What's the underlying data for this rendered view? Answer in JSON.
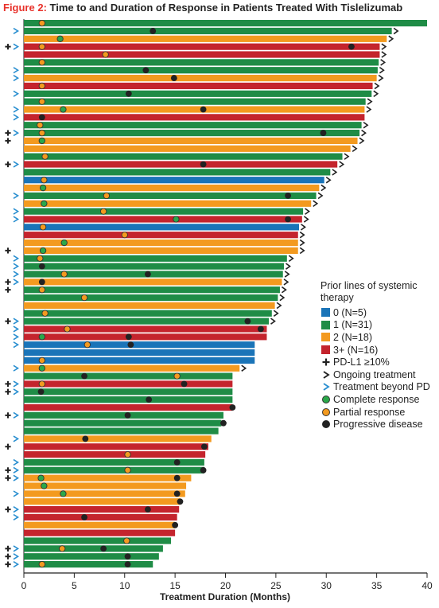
{
  "figure_label": "Figure 2:",
  "figure_title": "Time to and Duration of Response in Patients Treated With Tislelizumab",
  "legend": {
    "header": "Prior lines of systemic therapy",
    "lines": [
      {
        "key": "0",
        "label": "0 (N=5)",
        "color": "#1a74b8"
      },
      {
        "key": "1",
        "label": "1 (N=31)",
        "color": "#1f8c46"
      },
      {
        "key": "2",
        "label": "2 (N=18)",
        "color": "#f39a1f"
      },
      {
        "key": "3",
        "label": "3+ (N=16)",
        "color": "#c4242d"
      }
    ],
    "pdl1": "PD-L1 ≥10%",
    "ongoing": "Ongoing treatment",
    "beyond": "Treatment beyond PD",
    "complete": "Complete response",
    "partial": "Partial response",
    "progressive": "Progressive disease",
    "complete_color": "#2aa84a",
    "partial_color": "#f39a1f",
    "progressive_color": "#222222",
    "beyond_color": "#2a8fd0"
  },
  "chart_data": {
    "type": "bar",
    "orientation": "horizontal",
    "title": "Time to and Duration of Response in Patients Treated With Tislelizumab",
    "xlabel": "Treatment Duration (Months)",
    "xlim": [
      0,
      40
    ],
    "xticks": [
      0,
      5,
      10,
      15,
      20,
      25,
      30,
      35,
      40
    ],
    "legend_position": "right",
    "rows": [
      {
        "duration": 40.0,
        "line": "1",
        "pdl1": false,
        "beyond": false,
        "ongoing": false,
        "response": [
          {
            "type": "partial",
            "x": 1.8
          }
        ]
      },
      {
        "duration": 36.5,
        "line": "1",
        "pdl1": false,
        "beyond": true,
        "ongoing": true,
        "response": [
          {
            "type": "progressive",
            "x": 12.8
          }
        ]
      },
      {
        "duration": 36.0,
        "line": "2",
        "pdl1": false,
        "beyond": false,
        "ongoing": true,
        "response": [
          {
            "type": "complete",
            "x": 3.6
          }
        ]
      },
      {
        "duration": 35.3,
        "line": "3",
        "pdl1": true,
        "beyond": true,
        "ongoing": true,
        "response": [
          {
            "type": "partial",
            "x": 1.8
          },
          {
            "type": "progressive",
            "x": 32.5
          }
        ]
      },
      {
        "duration": 35.3,
        "line": "3",
        "pdl1": false,
        "beyond": false,
        "ongoing": true,
        "response": [
          {
            "type": "partial",
            "x": 8.1
          }
        ]
      },
      {
        "duration": 35.2,
        "line": "1",
        "pdl1": false,
        "beyond": false,
        "ongoing": true,
        "response": [
          {
            "type": "partial",
            "x": 1.8
          }
        ]
      },
      {
        "duration": 35.1,
        "line": "1",
        "pdl1": false,
        "beyond": true,
        "ongoing": true,
        "response": [
          {
            "type": "progressive",
            "x": 12.1
          }
        ]
      },
      {
        "duration": 35.0,
        "line": "2",
        "pdl1": false,
        "beyond": true,
        "ongoing": true,
        "response": [
          {
            "type": "progressive",
            "x": 14.9
          }
        ]
      },
      {
        "duration": 34.6,
        "line": "3",
        "pdl1": false,
        "beyond": false,
        "ongoing": true,
        "response": [
          {
            "type": "partial",
            "x": 1.8
          }
        ]
      },
      {
        "duration": 34.5,
        "line": "1",
        "pdl1": false,
        "beyond": true,
        "ongoing": true,
        "response": [
          {
            "type": "progressive",
            "x": 10.4
          }
        ]
      },
      {
        "duration": 33.9,
        "line": "1",
        "pdl1": false,
        "beyond": false,
        "ongoing": true,
        "response": [
          {
            "type": "partial",
            "x": 1.8
          }
        ]
      },
      {
        "duration": 33.8,
        "line": "2",
        "pdl1": false,
        "beyond": true,
        "ongoing": true,
        "response": [
          {
            "type": "complete",
            "x": 3.9
          },
          {
            "type": "progressive",
            "x": 17.8
          }
        ]
      },
      {
        "duration": 33.8,
        "line": "3",
        "pdl1": false,
        "beyond": true,
        "ongoing": false,
        "response": [
          {
            "type": "progressive",
            "x": 1.8
          }
        ]
      },
      {
        "duration": 33.5,
        "line": "1",
        "pdl1": false,
        "beyond": false,
        "ongoing": true,
        "response": [
          {
            "type": "partial",
            "x": 1.6
          }
        ]
      },
      {
        "duration": 33.3,
        "line": "1",
        "pdl1": true,
        "beyond": true,
        "ongoing": true,
        "response": [
          {
            "type": "partial",
            "x": 1.8
          },
          {
            "type": "progressive",
            "x": 29.7
          }
        ]
      },
      {
        "duration": 33.1,
        "line": "2",
        "pdl1": true,
        "beyond": false,
        "ongoing": true,
        "response": [
          {
            "type": "complete",
            "x": 1.8
          }
        ]
      },
      {
        "duration": 32.4,
        "line": "2",
        "pdl1": false,
        "beyond": false,
        "ongoing": true,
        "response": []
      },
      {
        "duration": 31.6,
        "line": "1",
        "pdl1": false,
        "beyond": false,
        "ongoing": true,
        "response": [
          {
            "type": "partial",
            "x": 2.1
          }
        ]
      },
      {
        "duration": 31.1,
        "line": "3",
        "pdl1": true,
        "beyond": true,
        "ongoing": true,
        "response": [
          {
            "type": "progressive",
            "x": 17.8
          }
        ]
      },
      {
        "duration": 30.4,
        "line": "1",
        "pdl1": false,
        "beyond": false,
        "ongoing": true,
        "response": []
      },
      {
        "duration": 29.8,
        "line": "0",
        "pdl1": false,
        "beyond": false,
        "ongoing": true,
        "response": [
          {
            "type": "partial",
            "x": 2.0
          }
        ]
      },
      {
        "duration": 29.3,
        "line": "2",
        "pdl1": false,
        "beyond": false,
        "ongoing": true,
        "response": [
          {
            "type": "complete",
            "x": 1.9
          }
        ]
      },
      {
        "duration": 29.0,
        "line": "1",
        "pdl1": false,
        "beyond": true,
        "ongoing": true,
        "response": [
          {
            "type": "partial",
            "x": 8.2
          },
          {
            "type": "progressive",
            "x": 26.2
          }
        ]
      },
      {
        "duration": 28.5,
        "line": "2",
        "pdl1": false,
        "beyond": false,
        "ongoing": true,
        "response": [
          {
            "type": "complete",
            "x": 2.0
          }
        ]
      },
      {
        "duration": 27.7,
        "line": "1",
        "pdl1": false,
        "beyond": true,
        "ongoing": true,
        "response": [
          {
            "type": "partial",
            "x": 7.9
          }
        ]
      },
      {
        "duration": 27.6,
        "line": "3",
        "pdl1": false,
        "beyond": true,
        "ongoing": true,
        "response": [
          {
            "type": "complete",
            "x": 15.1
          },
          {
            "type": "progressive",
            "x": 26.2
          }
        ]
      },
      {
        "duration": 27.3,
        "line": "0",
        "pdl1": false,
        "beyond": false,
        "ongoing": true,
        "response": [
          {
            "type": "partial",
            "x": 1.9
          }
        ]
      },
      {
        "duration": 27.2,
        "line": "3",
        "pdl1": false,
        "beyond": false,
        "ongoing": true,
        "response": [
          {
            "type": "partial",
            "x": 10.0
          }
        ]
      },
      {
        "duration": 27.2,
        "line": "2",
        "pdl1": false,
        "beyond": false,
        "ongoing": true,
        "response": [
          {
            "type": "complete",
            "x": 4.0
          }
        ]
      },
      {
        "duration": 27.2,
        "line": "2",
        "pdl1": true,
        "beyond": false,
        "ongoing": true,
        "response": [
          {
            "type": "complete",
            "x": 1.9
          }
        ]
      },
      {
        "duration": 26.1,
        "line": "1",
        "pdl1": false,
        "beyond": true,
        "ongoing": true,
        "response": [
          {
            "type": "partial",
            "x": 1.6
          }
        ]
      },
      {
        "duration": 25.8,
        "line": "1",
        "pdl1": false,
        "beyond": true,
        "ongoing": true,
        "response": [
          {
            "type": "progressive",
            "x": 1.8
          }
        ]
      },
      {
        "duration": 25.7,
        "line": "1",
        "pdl1": false,
        "beyond": true,
        "ongoing": true,
        "response": [
          {
            "type": "partial",
            "x": 4.0
          },
          {
            "type": "progressive",
            "x": 12.3
          }
        ]
      },
      {
        "duration": 25.6,
        "line": "2",
        "pdl1": true,
        "beyond": true,
        "ongoing": true,
        "response": [
          {
            "type": "progressive",
            "x": 1.8
          }
        ]
      },
      {
        "duration": 25.4,
        "line": "1",
        "pdl1": true,
        "beyond": false,
        "ongoing": true,
        "response": [
          {
            "type": "partial",
            "x": 1.8
          }
        ]
      },
      {
        "duration": 25.2,
        "line": "1",
        "pdl1": false,
        "beyond": false,
        "ongoing": true,
        "response": [
          {
            "type": "partial",
            "x": 6.0
          }
        ]
      },
      {
        "duration": 24.9,
        "line": "2",
        "pdl1": false,
        "beyond": false,
        "ongoing": true,
        "response": []
      },
      {
        "duration": 24.6,
        "line": "1",
        "pdl1": false,
        "beyond": false,
        "ongoing": true,
        "response": [
          {
            "type": "partial",
            "x": 2.1
          }
        ]
      },
      {
        "duration": 24.3,
        "line": "1",
        "pdl1": true,
        "beyond": true,
        "ongoing": true,
        "response": [
          {
            "type": "progressive",
            "x": 22.2
          }
        ]
      },
      {
        "duration": 24.1,
        "line": "3",
        "pdl1": false,
        "beyond": true,
        "ongoing": false,
        "response": [
          {
            "type": "partial",
            "x": 4.3
          },
          {
            "type": "progressive",
            "x": 23.5
          }
        ]
      },
      {
        "duration": 24.1,
        "line": "3",
        "pdl1": false,
        "beyond": true,
        "ongoing": false,
        "response": [
          {
            "type": "complete",
            "x": 1.8
          },
          {
            "type": "progressive",
            "x": 10.4
          }
        ]
      },
      {
        "duration": 22.9,
        "line": "0",
        "pdl1": false,
        "beyond": true,
        "ongoing": false,
        "response": [
          {
            "type": "partial",
            "x": 6.3
          },
          {
            "type": "progressive",
            "x": 10.6
          }
        ]
      },
      {
        "duration": 22.9,
        "line": "0",
        "pdl1": false,
        "beyond": false,
        "ongoing": false,
        "response": []
      },
      {
        "duration": 22.9,
        "line": "0",
        "pdl1": false,
        "beyond": false,
        "ongoing": false,
        "response": [
          {
            "type": "partial",
            "x": 1.8
          }
        ]
      },
      {
        "duration": 21.4,
        "line": "2",
        "pdl1": false,
        "beyond": true,
        "ongoing": true,
        "response": [
          {
            "type": "complete",
            "x": 1.8
          }
        ]
      },
      {
        "duration": 20.7,
        "line": "1",
        "pdl1": false,
        "beyond": false,
        "ongoing": false,
        "response": [
          {
            "type": "progressive",
            "x": 6.0
          },
          {
            "type": "partial",
            "x": 15.2
          }
        ]
      },
      {
        "duration": 20.7,
        "line": "3",
        "pdl1": true,
        "beyond": true,
        "ongoing": false,
        "response": [
          {
            "type": "partial",
            "x": 1.8
          },
          {
            "type": "progressive",
            "x": 15.9
          }
        ]
      },
      {
        "duration": 20.7,
        "line": "1",
        "pdl1": true,
        "beyond": true,
        "ongoing": false,
        "response": [
          {
            "type": "progressive",
            "x": 1.7
          }
        ]
      },
      {
        "duration": 20.7,
        "line": "1",
        "pdl1": false,
        "beyond": false,
        "ongoing": false,
        "response": [
          {
            "type": "progressive",
            "x": 12.4
          }
        ]
      },
      {
        "duration": 20.7,
        "line": "3",
        "pdl1": false,
        "beyond": false,
        "ongoing": false,
        "response": [
          {
            "type": "progressive",
            "x": 20.7
          }
        ]
      },
      {
        "duration": 19.8,
        "line": "1",
        "pdl1": true,
        "beyond": true,
        "ongoing": false,
        "response": [
          {
            "type": "progressive",
            "x": 10.3
          }
        ]
      },
      {
        "duration": 19.6,
        "line": "1",
        "pdl1": false,
        "beyond": false,
        "ongoing": false,
        "response": [
          {
            "type": "progressive",
            "x": 19.8
          }
        ]
      },
      {
        "duration": 19.3,
        "line": "1",
        "pdl1": false,
        "beyond": false,
        "ongoing": false,
        "response": []
      },
      {
        "duration": 18.6,
        "line": "2",
        "pdl1": false,
        "beyond": true,
        "ongoing": false,
        "response": [
          {
            "type": "progressive",
            "x": 6.1
          }
        ]
      },
      {
        "duration": 18.3,
        "line": "3",
        "pdl1": true,
        "beyond": false,
        "ongoing": false,
        "response": [
          {
            "type": "progressive",
            "x": 17.9
          }
        ]
      },
      {
        "duration": 18.0,
        "line": "3",
        "pdl1": false,
        "beyond": false,
        "ongoing": false,
        "response": [
          {
            "type": "partial",
            "x": 10.3
          }
        ]
      },
      {
        "duration": 17.9,
        "line": "1",
        "pdl1": false,
        "beyond": true,
        "ongoing": false,
        "response": [
          {
            "type": "progressive",
            "x": 15.2
          }
        ]
      },
      {
        "duration": 17.9,
        "line": "1",
        "pdl1": true,
        "beyond": true,
        "ongoing": false,
        "response": [
          {
            "type": "partial",
            "x": 10.3
          },
          {
            "type": "progressive",
            "x": 17.8
          }
        ]
      },
      {
        "duration": 16.6,
        "line": "2",
        "pdl1": true,
        "beyond": true,
        "ongoing": false,
        "response": [
          {
            "type": "complete",
            "x": 1.7
          },
          {
            "type": "progressive",
            "x": 15.2
          }
        ]
      },
      {
        "duration": 16.1,
        "line": "2",
        "pdl1": false,
        "beyond": false,
        "ongoing": false,
        "response": [
          {
            "type": "complete",
            "x": 2.0
          }
        ]
      },
      {
        "duration": 16.0,
        "line": "2",
        "pdl1": false,
        "beyond": true,
        "ongoing": false,
        "response": [
          {
            "type": "complete",
            "x": 3.9
          },
          {
            "type": "progressive",
            "x": 15.2
          }
        ]
      },
      {
        "duration": 15.5,
        "line": "2",
        "pdl1": false,
        "beyond": false,
        "ongoing": false,
        "response": [
          {
            "type": "progressive",
            "x": 15.5
          }
        ]
      },
      {
        "duration": 15.4,
        "line": "3",
        "pdl1": true,
        "beyond": true,
        "ongoing": false,
        "response": [
          {
            "type": "progressive",
            "x": 12.3
          }
        ]
      },
      {
        "duration": 15.2,
        "line": "3",
        "pdl1": false,
        "beyond": true,
        "ongoing": false,
        "response": [
          {
            "type": "progressive",
            "x": 6.0
          }
        ]
      },
      {
        "duration": 15.0,
        "line": "2",
        "pdl1": false,
        "beyond": false,
        "ongoing": false,
        "response": [
          {
            "type": "progressive",
            "x": 15.0
          }
        ]
      },
      {
        "duration": 15.0,
        "line": "3",
        "pdl1": false,
        "beyond": false,
        "ongoing": false,
        "response": []
      },
      {
        "duration": 14.6,
        "line": "1",
        "pdl1": false,
        "beyond": false,
        "ongoing": false,
        "response": [
          {
            "type": "partial",
            "x": 10.2
          }
        ]
      },
      {
        "duration": 13.8,
        "line": "1",
        "pdl1": true,
        "beyond": true,
        "ongoing": false,
        "response": [
          {
            "type": "partial",
            "x": 3.8
          },
          {
            "type": "progressive",
            "x": 7.9
          }
        ]
      },
      {
        "duration": 13.4,
        "line": "1",
        "pdl1": true,
        "beyond": true,
        "ongoing": false,
        "response": [
          {
            "type": "progressive",
            "x": 10.3
          }
        ]
      },
      {
        "duration": 12.8,
        "line": "1",
        "pdl1": true,
        "beyond": true,
        "ongoing": false,
        "response": [
          {
            "type": "partial",
            "x": 1.8
          },
          {
            "type": "progressive",
            "x": 10.3
          }
        ]
      }
    ]
  }
}
